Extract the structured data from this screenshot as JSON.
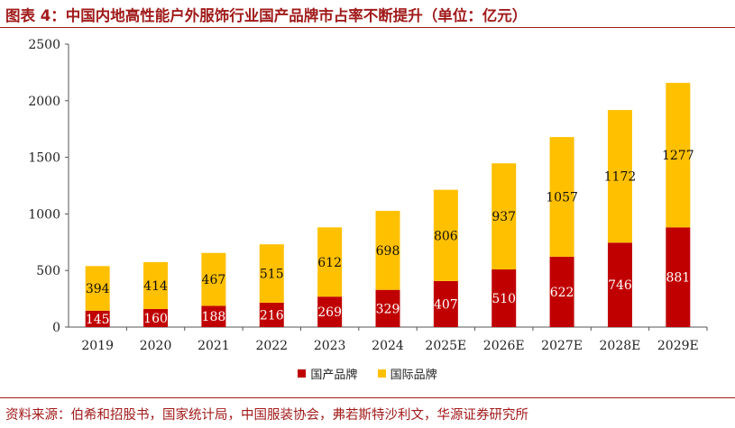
{
  "header": {
    "title": "图表 4：中国内地高性能户外服饰行业国产品牌市占率不断提升（单位：亿元）"
  },
  "footer": {
    "source": "资料来源：伯希和招股书，国家统计局，中国服装协会，弗若斯特沙利文，华源证券研究所"
  },
  "colors": {
    "domestic": "#c00000",
    "international": "#ffc000",
    "accent": "#a11b1b"
  },
  "chart_data": {
    "type": "bar",
    "stacked": true,
    "categories": [
      "2019",
      "2020",
      "2021",
      "2022",
      "2023",
      "2024",
      "2025E",
      "2026E",
      "2027E",
      "2028E",
      "2029E"
    ],
    "series": [
      {
        "name": "国产品牌",
        "values": [
          145,
          160,
          188,
          216,
          269,
          329,
          407,
          510,
          622,
          746,
          881
        ]
      },
      {
        "name": "国际品牌",
        "values": [
          394,
          414,
          467,
          515,
          612,
          698,
          806,
          937,
          1057,
          1172,
          1277
        ]
      }
    ],
    "y_ticks": [
      "0",
      "500",
      "1000",
      "1500",
      "2000",
      "2500"
    ],
    "ylim": [
      0,
      2500
    ],
    "grid": false,
    "legend_position": "bottom"
  }
}
